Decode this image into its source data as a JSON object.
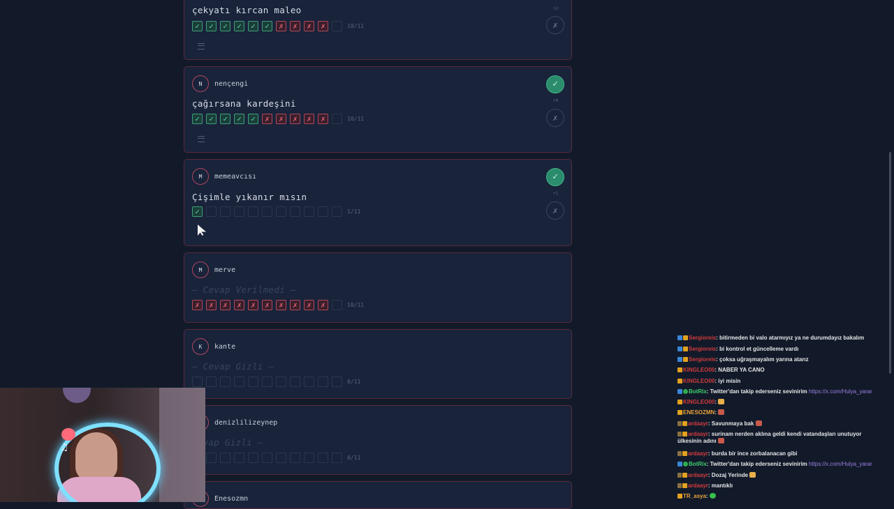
{
  "cards": [
    {
      "answer": "çekyatı kırcan maleo",
      "marks": [
        "ok",
        "ok",
        "ok",
        "ok",
        "ok",
        "ok",
        "no",
        "no",
        "no",
        "no",
        "empty"
      ],
      "score": "10/11",
      "delta": "+2"
    },
    {
      "initial": "N",
      "username": "nençengi",
      "answer": "çağırsana kardeşini",
      "marks": [
        "ok",
        "ok",
        "ok",
        "ok",
        "ok",
        "no",
        "no",
        "no",
        "no",
        "no",
        "empty"
      ],
      "score": "10/11",
      "delta": "+0"
    },
    {
      "initial": "M",
      "username": "memeavcısı",
      "answer": "Çişimle yıkanır mısın",
      "marks": [
        "ok",
        "empty",
        "empty",
        "empty",
        "empty",
        "empty",
        "empty",
        "empty",
        "empty",
        "empty",
        "empty"
      ],
      "score": "1/11",
      "delta": "+1"
    },
    {
      "initial": "M",
      "username": "merve",
      "answer": "— Cevap Verilmedi —",
      "marks": [
        "no",
        "no",
        "no",
        "no",
        "no",
        "no",
        "no",
        "no",
        "no",
        "no",
        "empty"
      ],
      "score": "10/11"
    },
    {
      "initial": "K",
      "username": "kante",
      "answer": "— Cevap Gizli —",
      "marks": [
        "empty",
        "empty",
        "empty",
        "empty",
        "empty",
        "empty",
        "empty",
        "empty",
        "empty",
        "empty",
        "empty"
      ],
      "score": "0/11"
    },
    {
      "username": "denizlilizeynep",
      "answer": "Cevap Gizli —",
      "marks": [
        "empty",
        "empty",
        "empty",
        "empty",
        "empty",
        "empty",
        "empty",
        "empty",
        "empty",
        "empty",
        "empty"
      ],
      "score": "0/11"
    },
    {
      "username": "Enesozmn"
    }
  ],
  "icons": {
    "check": "✓",
    "cross": "✗"
  },
  "chat": [
    {
      "user": "Sergioreis",
      "user_color": "#d23b3b",
      "text": ": bitirmeden bi valo atarmıyız ya ne durumdayız bakalım"
    },
    {
      "user": "Sergioreis",
      "user_color": "#d23b3b",
      "text": ": bi kontrol et güncelleme vardı"
    },
    {
      "user": "Sergioreis",
      "user_color": "#d23b3b",
      "text": ": çoksa uğraşmayalım yarına atarız"
    },
    {
      "user": "KINGLEO00",
      "user_color": "#d23b3b",
      "text": ": NABER YA CANO"
    },
    {
      "user": "KINGLEO00",
      "user_color": "#d23b3b",
      "text": ": iyi misin"
    },
    {
      "user": "BotRix",
      "user_color": "#3fcf6a",
      "text": ": Twitter'dan takip ederseniz sevinirim",
      "link": "https://x.com/Hulya_yarar"
    },
    {
      "user": "KINGLEO00",
      "user_color": "#d23b3b",
      "text": ":"
    },
    {
      "user": "ENESOZMN",
      "user_color": "#e8a23a",
      "text": ":"
    },
    {
      "user": "ardaayr",
      "user_color": "#d23b3b",
      "text": ": Savunmaya bak"
    },
    {
      "user": "ardaayr",
      "user_color": "#d23b3b",
      "text": ": surinam nerden aklına geldi kendi vatandaşları unutuyor ülkesinin adını"
    },
    {
      "user": "ardaayr",
      "user_color": "#d23b3b",
      "text": ": burda bir ince zorbalanacan gibi"
    },
    {
      "user": "BotRix",
      "user_color": "#3fcf6a",
      "text": ": Twitter'dan takip ederseniz sevinirim",
      "link": "https://x.com/Hulya_yarar"
    },
    {
      "user": "ardaayr",
      "user_color": "#d23b3b",
      "text": ": Dozaj Yerinde"
    },
    {
      "user": "ardaayr",
      "user_color": "#d23b3b",
      "text": ": mantıklı"
    },
    {
      "user": "TR_asya",
      "user_color": "#e8a23a",
      "text": ":"
    }
  ]
}
